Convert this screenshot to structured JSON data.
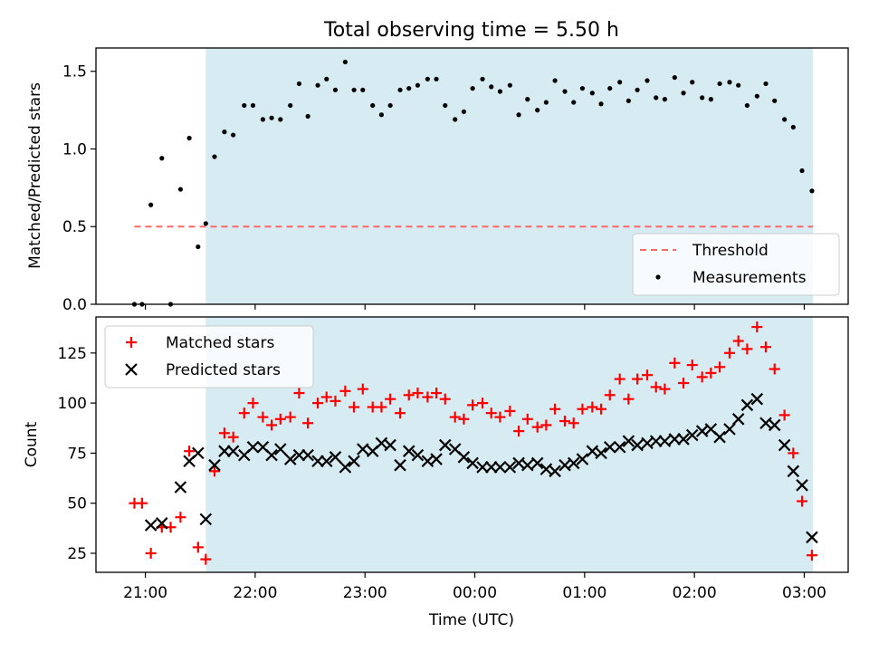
{
  "figure": {
    "title": "Total observing time = 5.50 h",
    "xlabel": "Time (UTC)"
  },
  "colors": {
    "shade": "#add8e6",
    "threshold": "#ff6666",
    "measurements": "#000000",
    "matched": "#ff0000",
    "predicted": "#000000"
  },
  "chart_data": [
    {
      "type": "scatter",
      "panel": "top",
      "ylabel": "Matched/Predicted stars",
      "x_unit": "hours after 00:00 UTC",
      "xlim": [
        -3.45,
        3.4
      ],
      "ylim": [
        0,
        1.65
      ],
      "yticks": [
        0.0,
        0.5,
        1.0,
        1.5
      ],
      "ytick_labels": [
        "0.0",
        "0.5",
        "1.0",
        "1.5"
      ],
      "xticks": [
        -3,
        -2,
        -1,
        0,
        1,
        2,
        3
      ],
      "xtick_labels": [],
      "shaded_interval": [
        -2.45,
        3.08
      ],
      "threshold": {
        "name": "Threshold",
        "value": 0.5,
        "x_range": [
          -3.1,
          3.08
        ]
      },
      "legend_loc": "lower right",
      "series": [
        {
          "name": "Measurements",
          "marker": "dot",
          "x": [
            -3.1,
            -3.03,
            -2.95,
            -2.85,
            -2.77,
            -2.68,
            -2.6,
            -2.52,
            -2.45,
            -2.37,
            -2.28,
            -2.2,
            -2.1,
            -2.02,
            -1.93,
            -1.85,
            -1.77,
            -1.68,
            -1.6,
            -1.52,
            -1.43,
            -1.35,
            -1.27,
            -1.18,
            -1.1,
            -1.02,
            -0.93,
            -0.85,
            -0.77,
            -0.68,
            -0.6,
            -0.52,
            -0.43,
            -0.35,
            -0.27,
            -0.18,
            -0.1,
            -0.02,
            0.07,
            0.15,
            0.23,
            0.32,
            0.4,
            0.48,
            0.57,
            0.65,
            0.73,
            0.82,
            0.9,
            0.98,
            1.07,
            1.15,
            1.23,
            1.32,
            1.4,
            1.48,
            1.57,
            1.65,
            1.73,
            1.82,
            1.9,
            1.98,
            2.07,
            2.15,
            2.23,
            2.32,
            2.4,
            2.48,
            2.57,
            2.65,
            2.73,
            2.82,
            2.9,
            2.98,
            3.07
          ],
          "y": [
            0.0,
            0.0,
            0.64,
            0.94,
            0.0,
            0.74,
            1.07,
            0.37,
            0.52,
            0.95,
            1.11,
            1.09,
            1.28,
            1.28,
            1.19,
            1.2,
            1.19,
            1.28,
            1.42,
            1.21,
            1.41,
            1.45,
            1.38,
            1.56,
            1.38,
            1.38,
            1.28,
            1.22,
            1.28,
            1.38,
            1.39,
            1.41,
            1.45,
            1.45,
            1.28,
            1.19,
            1.24,
            1.39,
            1.45,
            1.4,
            1.37,
            1.41,
            1.22,
            1.32,
            1.25,
            1.3,
            1.44,
            1.37,
            1.3,
            1.39,
            1.36,
            1.29,
            1.39,
            1.43,
            1.31,
            1.38,
            1.44,
            1.33,
            1.32,
            1.46,
            1.36,
            1.43,
            1.33,
            1.32,
            1.42,
            1.43,
            1.41,
            1.28,
            1.34,
            1.42,
            1.31,
            1.19,
            1.14,
            0.86,
            0.73
          ]
        }
      ]
    },
    {
      "type": "scatter",
      "panel": "bottom",
      "ylabel": "Count",
      "x_unit": "hours after 00:00 UTC",
      "xlim": [
        -3.45,
        3.4
      ],
      "ylim": [
        15.5,
        143
      ],
      "yticks": [
        25,
        50,
        75,
        100,
        125
      ],
      "ytick_labels": [
        "25",
        "50",
        "75",
        "100",
        "125"
      ],
      "xticks": [
        -3,
        -2,
        -1,
        0,
        1,
        2,
        3
      ],
      "xtick_labels": [
        "21:00",
        "22:00",
        "23:00",
        "00:00",
        "01:00",
        "02:00",
        "03:00"
      ],
      "shaded_interval": [
        -2.45,
        3.08
      ],
      "legend_loc": "upper left",
      "x": [
        -3.1,
        -3.03,
        -2.95,
        -2.85,
        -2.77,
        -2.68,
        -2.6,
        -2.52,
        -2.45,
        -2.37,
        -2.28,
        -2.2,
        -2.1,
        -2.02,
        -1.93,
        -1.85,
        -1.77,
        -1.68,
        -1.6,
        -1.52,
        -1.43,
        -1.35,
        -1.27,
        -1.18,
        -1.1,
        -1.02,
        -0.93,
        -0.85,
        -0.77,
        -0.68,
        -0.6,
        -0.52,
        -0.43,
        -0.35,
        -0.27,
        -0.18,
        -0.1,
        -0.02,
        0.07,
        0.15,
        0.23,
        0.32,
        0.4,
        0.48,
        0.57,
        0.65,
        0.73,
        0.82,
        0.9,
        0.98,
        1.07,
        1.15,
        1.23,
        1.32,
        1.4,
        1.48,
        1.57,
        1.65,
        1.73,
        1.82,
        1.9,
        1.98,
        2.07,
        2.15,
        2.23,
        2.32,
        2.4,
        2.48,
        2.57,
        2.65,
        2.73,
        2.82,
        2.9,
        2.98,
        3.07
      ],
      "series": [
        {
          "name": "Matched stars",
          "marker": "plus",
          "values": [
            50,
            50,
            25,
            38,
            38,
            43,
            76,
            28,
            22,
            66,
            85,
            83,
            95,
            100,
            93,
            89,
            92,
            93,
            105,
            90,
            100,
            103,
            101,
            106,
            98,
            107,
            98,
            98,
            102,
            95,
            104,
            105,
            103,
            105,
            102,
            93,
            92,
            99,
            100,
            95,
            93,
            96,
            86,
            92,
            88,
            89,
            97,
            91,
            90,
            97,
            98,
            97,
            104,
            112,
            102,
            112,
            114,
            108,
            107,
            120,
            110,
            119,
            113,
            115,
            118,
            125,
            131,
            127,
            138,
            128,
            117,
            94,
            75,
            51,
            24
          ]
        },
        {
          "name": "Predicted stars",
          "marker": "x",
          "values": [
            null,
            null,
            39,
            40,
            null,
            58,
            71,
            75,
            42,
            69,
            76,
            76,
            74,
            78,
            78,
            74,
            77,
            72,
            74,
            74,
            71,
            71,
            73,
            68,
            71,
            77,
            76,
            80,
            79,
            69,
            76,
            74,
            71,
            72,
            79,
            77,
            73,
            70,
            68,
            68,
            68,
            68,
            70,
            69,
            70,
            67,
            66,
            69,
            70,
            72,
            76,
            75,
            78,
            78,
            81,
            79,
            80,
            81,
            81,
            82,
            82,
            84,
            86,
            87,
            83,
            87,
            92,
            99,
            102,
            90,
            89,
            79,
            66,
            59,
            33
          ]
        }
      ]
    }
  ]
}
